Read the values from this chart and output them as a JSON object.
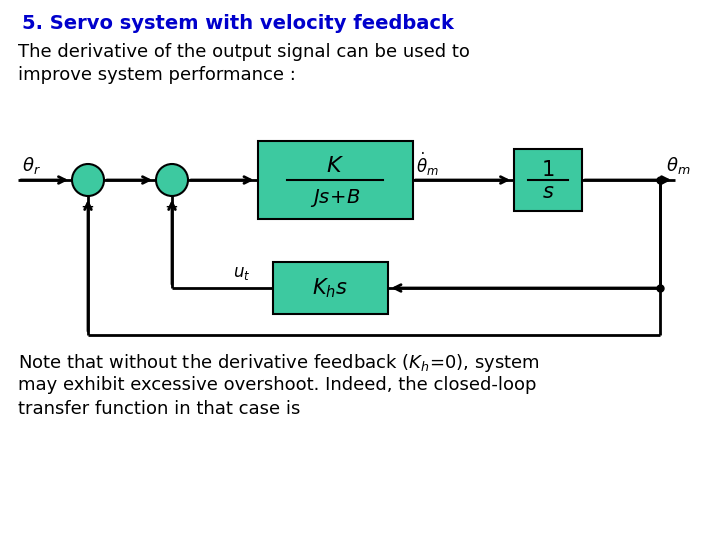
{
  "title": "5. Servo system with velocity feedback",
  "title_color": "#0000CC",
  "bg_color": "#FFFFFF",
  "desc1": "The derivative of the output signal can be used to",
  "desc2": "improve system performance :",
  "note1": "Note that without the derivative feedback ( ",
  "note2": "may exhibit excessive overshoot. Indeed, the closed-loop",
  "note3": "transfer function in that case is",
  "block_color": "#3DC9A0",
  "line_color": "#000000",
  "sumjunction_color": "#3DC9A0",
  "title_fontsize": 14,
  "desc_fontsize": 13,
  "note_fontsize": 13
}
